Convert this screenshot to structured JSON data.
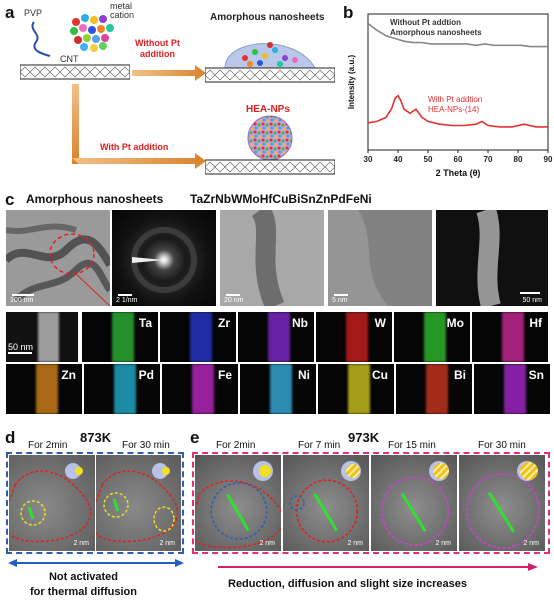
{
  "panel_a": {
    "label": "a",
    "pvp": "PVP",
    "metal_cation": "metal\ncation",
    "cnt": "CNT",
    "without_pt": "Without Pt\naddition",
    "with_pt": "With Pt addition",
    "amorphous": "Amorphous nanosheets",
    "hea_nps": "HEA-NPs",
    "colors": {
      "arrow": "#d9822b",
      "red_text": "#e02020"
    }
  },
  "panel_b": {
    "label": "b",
    "legend_top": "Without Pt addtion\nAmorphous nanosheets",
    "legend_bottom": "With Pt addtion\nHEA-NPs-(14)",
    "chart_data": {
      "type": "line",
      "xlabel": "2 Theta (θ)",
      "ylabel": "Intensity (a.u.)",
      "xlim": [
        30,
        90
      ],
      "xticks": [
        30,
        40,
        50,
        60,
        70,
        80,
        90
      ],
      "series": [
        {
          "color": "#888888",
          "x": [
            30,
            33,
            36,
            39,
            42,
            45,
            48,
            51,
            54,
            57,
            60,
            63,
            66,
            69,
            72,
            75,
            78,
            81,
            84,
            87,
            90
          ],
          "y": [
            0.93,
            0.88,
            0.84,
            0.82,
            0.8,
            0.79,
            0.79,
            0.78,
            0.78,
            0.78,
            0.78,
            0.78,
            0.77,
            0.78,
            0.77,
            0.77,
            0.77,
            0.77,
            0.76,
            0.76,
            0.76
          ]
        },
        {
          "color": "#e53030",
          "x": [
            30,
            33,
            36,
            38,
            39,
            40,
            41,
            42,
            44,
            46,
            48,
            50,
            54,
            58,
            62,
            66,
            68,
            70,
            74,
            78,
            82,
            86,
            90
          ],
          "y": [
            0.2,
            0.21,
            0.24,
            0.31,
            0.38,
            0.4,
            0.36,
            0.3,
            0.27,
            0.3,
            0.24,
            0.21,
            0.19,
            0.18,
            0.18,
            0.19,
            0.21,
            0.18,
            0.17,
            0.17,
            0.19,
            0.17,
            0.17
          ]
        }
      ]
    }
  },
  "panel_c": {
    "label": "c",
    "title_left": "Amorphous nanosheets",
    "title_right": "TaZrNbWMoHfCuBiSnZnPdFeNi",
    "scalebars": [
      "100 nm",
      "2 1/nm",
      "20 nm",
      "5 nm",
      "50 nm",
      "50 nm"
    ],
    "elements_row1": [
      {
        "symbol": "Ta",
        "color": "#2fbf3a"
      },
      {
        "symbol": "Zr",
        "color": "#2a3ad8"
      },
      {
        "symbol": "Nb",
        "color": "#8a2bd8"
      },
      {
        "symbol": "W",
        "color": "#d82020"
      },
      {
        "symbol": "Mo",
        "color": "#32c832"
      },
      {
        "symbol": "Hf",
        "color": "#d82aa0"
      }
    ],
    "elements_row2": [
      {
        "symbol": "Zn",
        "color": "#e08a1a"
      },
      {
        "symbol": "Pd",
        "color": "#22b8d8"
      },
      {
        "symbol": "Fe",
        "color": "#c82ad0"
      },
      {
        "symbol": "Ni",
        "color": "#3ab8e8"
      },
      {
        "symbol": "Cu",
        "color": "#d8d020"
      },
      {
        "symbol": "Bi",
        "color": "#d83a20"
      },
      {
        "symbol": "Sn",
        "color": "#b02ad8"
      }
    ]
  },
  "panel_d": {
    "label": "d",
    "temp": "873K",
    "times": [
      "For 2min",
      "For 30 min"
    ],
    "scales": [
      "2 nm",
      "2 nm"
    ],
    "caption": "Not activated\nfor thermal diffusion",
    "colors": {
      "frame": "#2f5fb0",
      "arrow": "#1f5fbf"
    }
  },
  "panel_e": {
    "label": "e",
    "temp": "973K",
    "times": [
      "For 2min",
      "For 7 min",
      "For 15 min",
      "For 30 min"
    ],
    "scales": [
      "2 nm",
      "2 nm",
      "2 nm",
      "2 nm"
    ],
    "caption": "Reduction, diffusion  and slight size increases",
    "colors": {
      "frame": "#e0307a",
      "arrow": "#d0206a"
    }
  }
}
